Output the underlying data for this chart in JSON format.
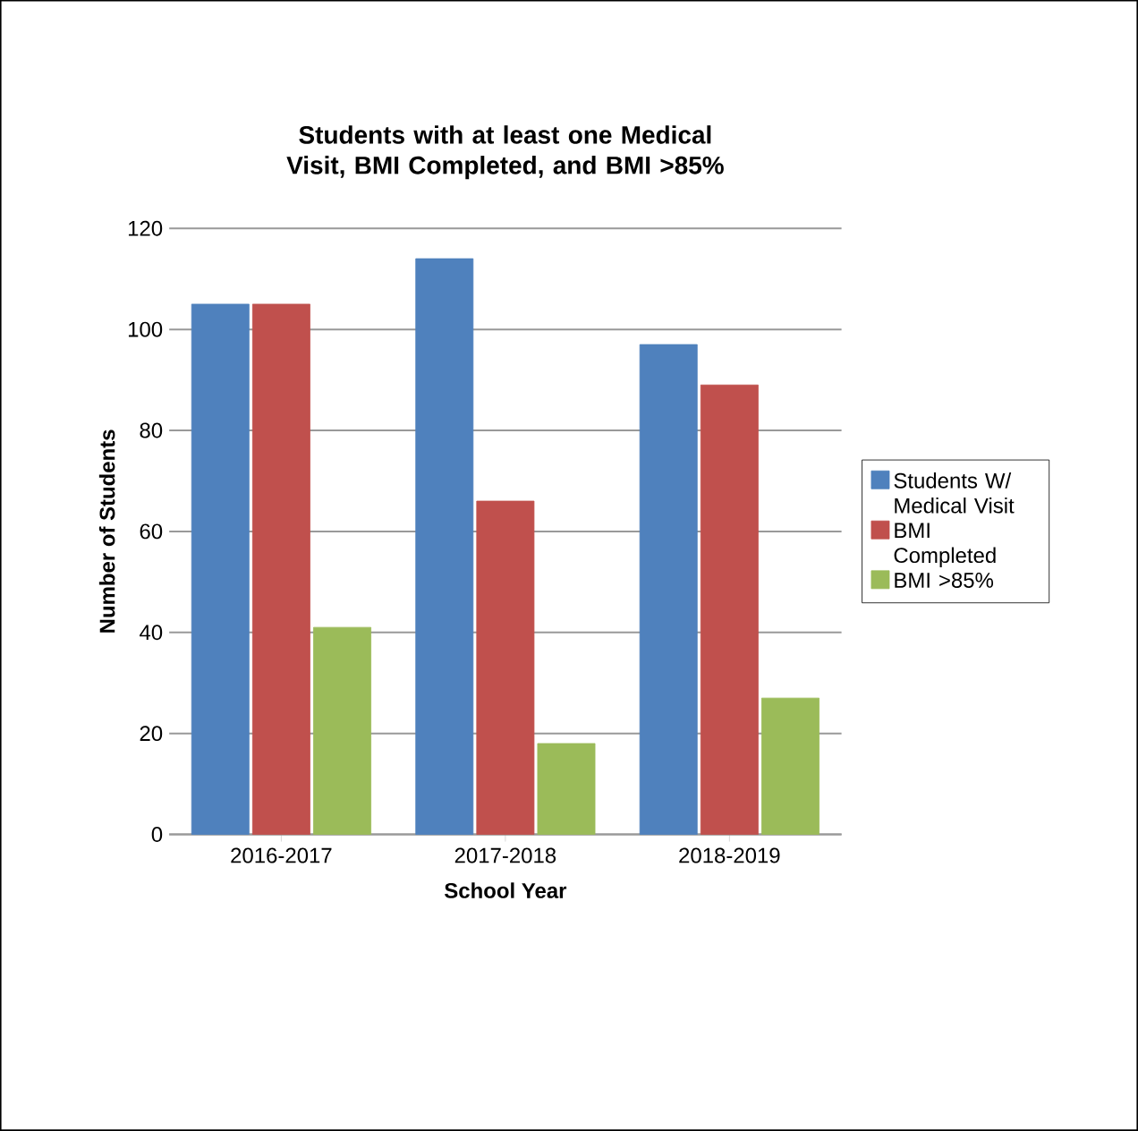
{
  "chart_data": {
    "type": "bar",
    "title": "Students with at least one Medical Visit, BMI Completed, and BMI >85%",
    "xlabel": "School Year",
    "ylabel": "Number of Students",
    "categories": [
      "2016-2017",
      "2017-2018",
      "2018-2019"
    ],
    "series": [
      {
        "name": "Students W/ Medical Visit",
        "color": "#4f81bd",
        "values": [
          105,
          114,
          97
        ]
      },
      {
        "name": "BMI Completed",
        "color": "#c0504d",
        "values": [
          105,
          66,
          89
        ]
      },
      {
        "name": "BMI >85%",
        "color": "#9bbb59",
        "values": [
          41,
          18,
          27
        ]
      }
    ],
    "ylim": [
      0,
      120
    ],
    "yticks": [
      0,
      20,
      40,
      60,
      80,
      100,
      120
    ],
    "grid": "y",
    "legend": "right"
  }
}
